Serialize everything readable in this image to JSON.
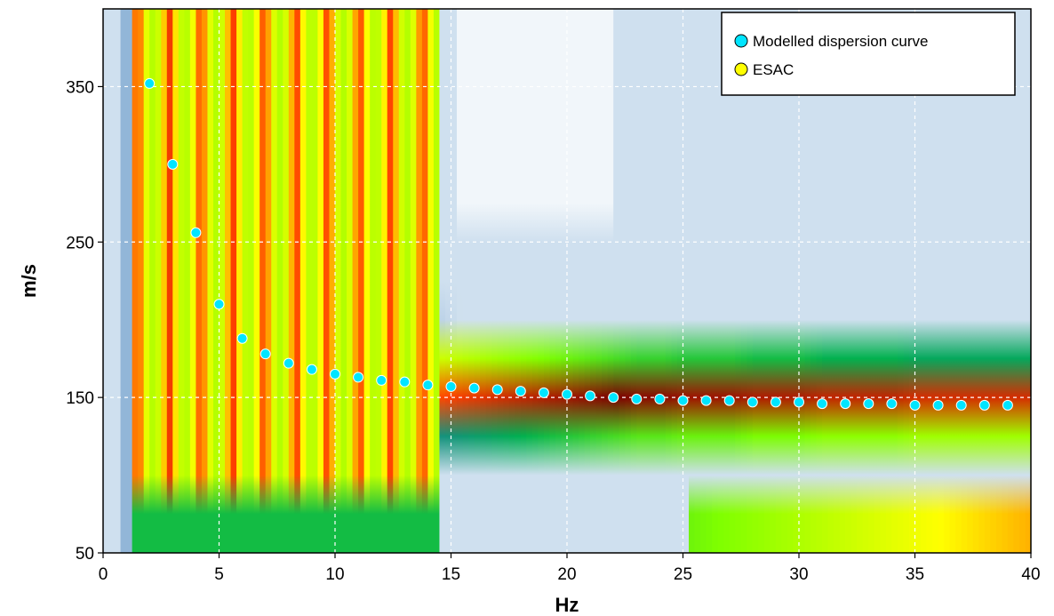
{
  "chart_data": {
    "type": "heatmap",
    "title": "",
    "xlabel": "Hz",
    "ylabel": "m/s",
    "xlim": [
      0,
      40
    ],
    "ylim": [
      50,
      400
    ],
    "x_ticks": [
      0,
      5,
      10,
      15,
      20,
      25,
      30,
      35,
      40
    ],
    "y_ticks": [
      50,
      150,
      250,
      350
    ],
    "grid": true,
    "legend_position": "top-right",
    "colormap": [
      "#ffffff",
      "#d8e6f2",
      "#2a6fb0",
      "#00b050",
      "#7fff00",
      "#ffff00",
      "#ff4000",
      "#7a0000"
    ],
    "series": [
      {
        "name": "Modelled dispersion curve",
        "marker": "circle",
        "color": "#00e5ff",
        "x": [
          2,
          3,
          4,
          5,
          6,
          7,
          8,
          9,
          10,
          11,
          12,
          13,
          14,
          15,
          16,
          17,
          18,
          19,
          20,
          21,
          22,
          23,
          24,
          25,
          26,
          27,
          28,
          29,
          30,
          31,
          32,
          33,
          34,
          35,
          36,
          37,
          38,
          39
        ],
        "y": [
          352,
          300,
          256,
          210,
          188,
          178,
          172,
          168,
          165,
          163,
          161,
          160,
          158,
          157,
          156,
          155,
          154,
          153,
          152,
          151,
          150,
          149,
          149,
          148,
          148,
          148,
          147,
          147,
          147,
          146,
          146,
          146,
          146,
          145,
          145,
          145,
          145,
          145
        ]
      },
      {
        "name": "ESAC",
        "marker": "circle",
        "color": "#ffff00",
        "x": [],
        "y": []
      }
    ]
  }
}
